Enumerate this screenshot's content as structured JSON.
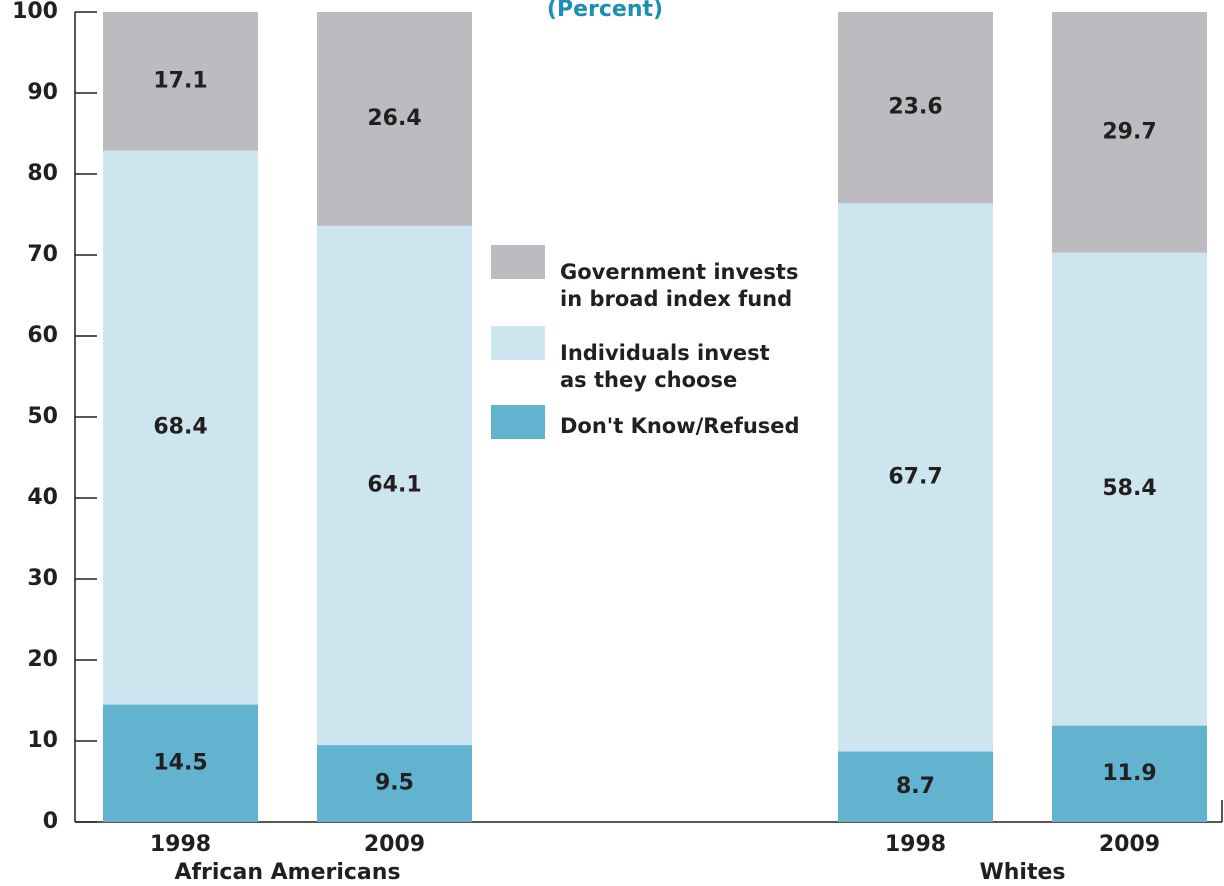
{
  "chart_data": {
    "type": "stacked_bar",
    "title": "(Percent)",
    "categories": [
      "1998",
      "2009",
      "1998",
      "2009"
    ],
    "groups": [
      {
        "name": "African Americans",
        "count": 2
      },
      {
        "name": "Whites",
        "count": 2
      }
    ],
    "series": [
      {
        "name": "Don't Know/Refused",
        "color": "#62b3cf",
        "values": [
          14.5,
          9.5,
          8.7,
          11.9
        ]
      },
      {
        "name": "Individuals invest\nas they choose",
        "color": "#cce5ef",
        "values": [
          68.4,
          64.1,
          67.7,
          58.4
        ]
      },
      {
        "name": "Government invests\nin broad index fund",
        "color": "#bcbcc0",
        "values": [
          17.1,
          26.4,
          23.6,
          29.7
        ]
      }
    ],
    "ylim": [
      0,
      100
    ],
    "yticks": [
      0,
      10,
      20,
      30,
      40,
      50,
      60,
      70,
      80,
      90,
      100
    ]
  }
}
